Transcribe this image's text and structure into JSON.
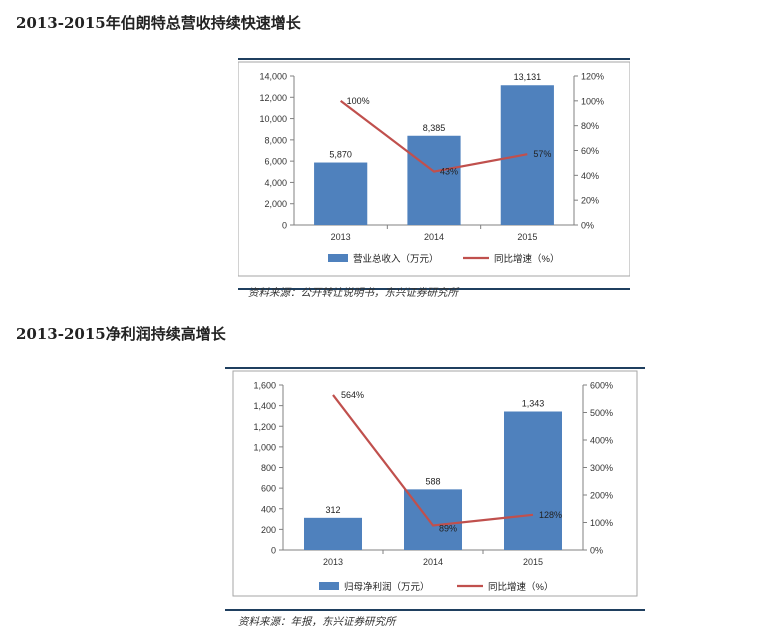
{
  "headings": {
    "chart1": "2013-2015年伯朗特总营收持续快速增长",
    "chart2": "2013-2015净利润持续高增长"
  },
  "sources": {
    "chart1": "资料来源：公开转让说明书，东兴证券研究所",
    "chart2": "资料来源：年报，东兴证券研究所"
  },
  "colors": {
    "bar": "#4f81bd",
    "line": "#c0504d",
    "rule": "#1f3f5f"
  },
  "chart_data": [
    {
      "type": "bar",
      "categories": [
        "2013",
        "2014",
        "2015"
      ],
      "series": [
        {
          "name": "营业总收入（万元）",
          "values": [
            5870,
            8385,
            13131
          ],
          "value_labels": [
            "5,870",
            "8,385",
            "13,131"
          ]
        },
        {
          "name": "同比增速（%）",
          "type": "line",
          "axis": "right",
          "values": [
            100,
            43,
            57
          ],
          "value_labels": [
            "100%",
            "43%",
            "57%"
          ]
        }
      ],
      "ylim": [
        0,
        14000
      ],
      "yticks": [
        "0",
        "2,000",
        "4,000",
        "6,000",
        "8,000",
        "10,000",
        "12,000",
        "14,000"
      ],
      "y2lim": [
        0,
        120
      ],
      "y2ticks": [
        "0%",
        "20%",
        "40%",
        "60%",
        "80%",
        "100%",
        "120%"
      ],
      "legend": "bottom"
    },
    {
      "type": "bar",
      "categories": [
        "2013",
        "2014",
        "2015"
      ],
      "series": [
        {
          "name": "归母净利润（万元）",
          "values": [
            312,
            588,
            1343
          ],
          "value_labels": [
            "312",
            "588",
            "1,343"
          ]
        },
        {
          "name": "同比增速（%）",
          "type": "line",
          "axis": "right",
          "values": [
            564,
            89,
            128
          ],
          "value_labels": [
            "564%",
            "89%",
            "128%"
          ]
        }
      ],
      "ylim": [
        0,
        1600
      ],
      "yticks": [
        "0",
        "200",
        "400",
        "600",
        "800",
        "1,000",
        "1,200",
        "1,400",
        "1,600"
      ],
      "y2lim": [
        0,
        600
      ],
      "y2ticks": [
        "0%",
        "100%",
        "200%",
        "300%",
        "400%",
        "500%",
        "600%"
      ],
      "legend": "bottom"
    }
  ]
}
